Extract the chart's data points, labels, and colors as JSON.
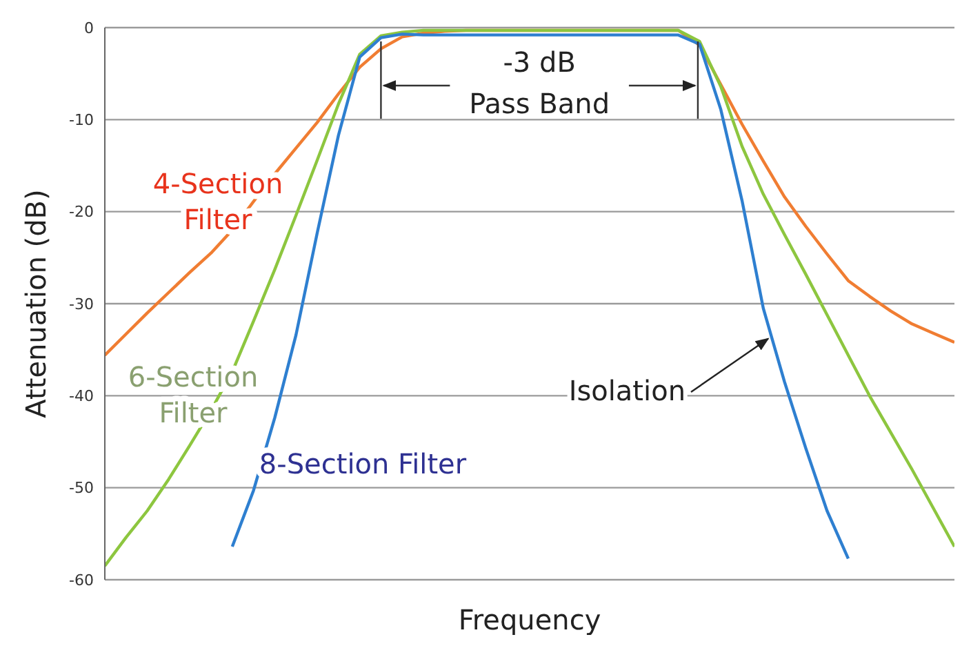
{
  "chart_data": {
    "type": "line",
    "xlabel": "Frequency",
    "ylabel": "Attenuation (dB)",
    "ylim": [
      -60,
      0
    ],
    "yticks": [
      0,
      -10,
      -20,
      -30,
      -40,
      -50,
      -60
    ],
    "tick_labels": "y",
    "grid": "y",
    "legend": false,
    "marker": "none",
    "line_style": "solid",
    "categories": [
      null,
      null,
      null,
      null,
      null,
      null,
      null,
      null,
      null,
      null,
      null,
      null,
      null,
      null,
      null,
      null,
      null,
      null,
      null,
      null,
      null,
      null,
      null,
      null,
      null,
      null,
      null,
      null,
      null,
      null,
      null,
      null,
      null,
      null,
      null,
      null,
      null,
      null,
      null,
      null,
      null
    ],
    "series": [
      {
        "name": "4-Section Filter",
        "color": "#f07d32",
        "values": [
          -35.6,
          -33.3,
          -31,
          -28.8,
          -26.6,
          -24.5,
          -22,
          -18.9,
          -15.9,
          -13.1,
          -10.3,
          -7.2,
          -4.3,
          -2.3,
          -1,
          -0.6,
          -0.4,
          -0.3,
          -0.3,
          -0.3,
          -0.3,
          -0.3,
          -0.3,
          -0.3,
          -0.3,
          -0.3,
          -0.3,
          -0.3,
          -1.9,
          -6.2,
          -10.5,
          -14.5,
          -18.4,
          -21.6,
          -24.6,
          -27.5,
          -29.2,
          -30.8,
          -32.2,
          -33.2,
          -34.2
        ]
      },
      {
        "name": "6-Section Filter",
        "color": "#8dc63f",
        "values": [
          -58.5,
          -55.4,
          -52.5,
          -49.1,
          -45.4,
          -41.6,
          -37.4,
          -31.9,
          -26.3,
          -20.4,
          -14.4,
          -8.3,
          -2.9,
          -0.9,
          -0.5,
          -0.3,
          -0.3,
          -0.3,
          -0.3,
          -0.3,
          -0.3,
          -0.3,
          -0.3,
          -0.3,
          -0.3,
          -0.3,
          -0.3,
          -0.3,
          -1.5,
          -6.4,
          -12.9,
          -18.1,
          -22.5,
          -26.8,
          -31.2,
          -35.6,
          -40,
          -44,
          -48,
          -52.2,
          -56.4
        ]
      },
      {
        "name": "8-Section Filter",
        "color": "#2e7fd0",
        "values": [
          null,
          null,
          null,
          null,
          null,
          null,
          -56.4,
          -50.3,
          -42.4,
          -33.4,
          -22.3,
          -11.7,
          -3.2,
          -1.1,
          -0.7,
          -0.8,
          -0.8,
          -0.8,
          -0.8,
          -0.8,
          -0.8,
          -0.8,
          -0.8,
          -0.8,
          -0.8,
          -0.8,
          -0.8,
          -0.8,
          -1.8,
          -8.9,
          -18.8,
          -30.5,
          -38.5,
          -45.7,
          -52.5,
          -57.7,
          null,
          null,
          null,
          null,
          null
        ]
      }
    ],
    "annotations": [
      "-3 dB Pass Band",
      "Isolation"
    ]
  }
}
